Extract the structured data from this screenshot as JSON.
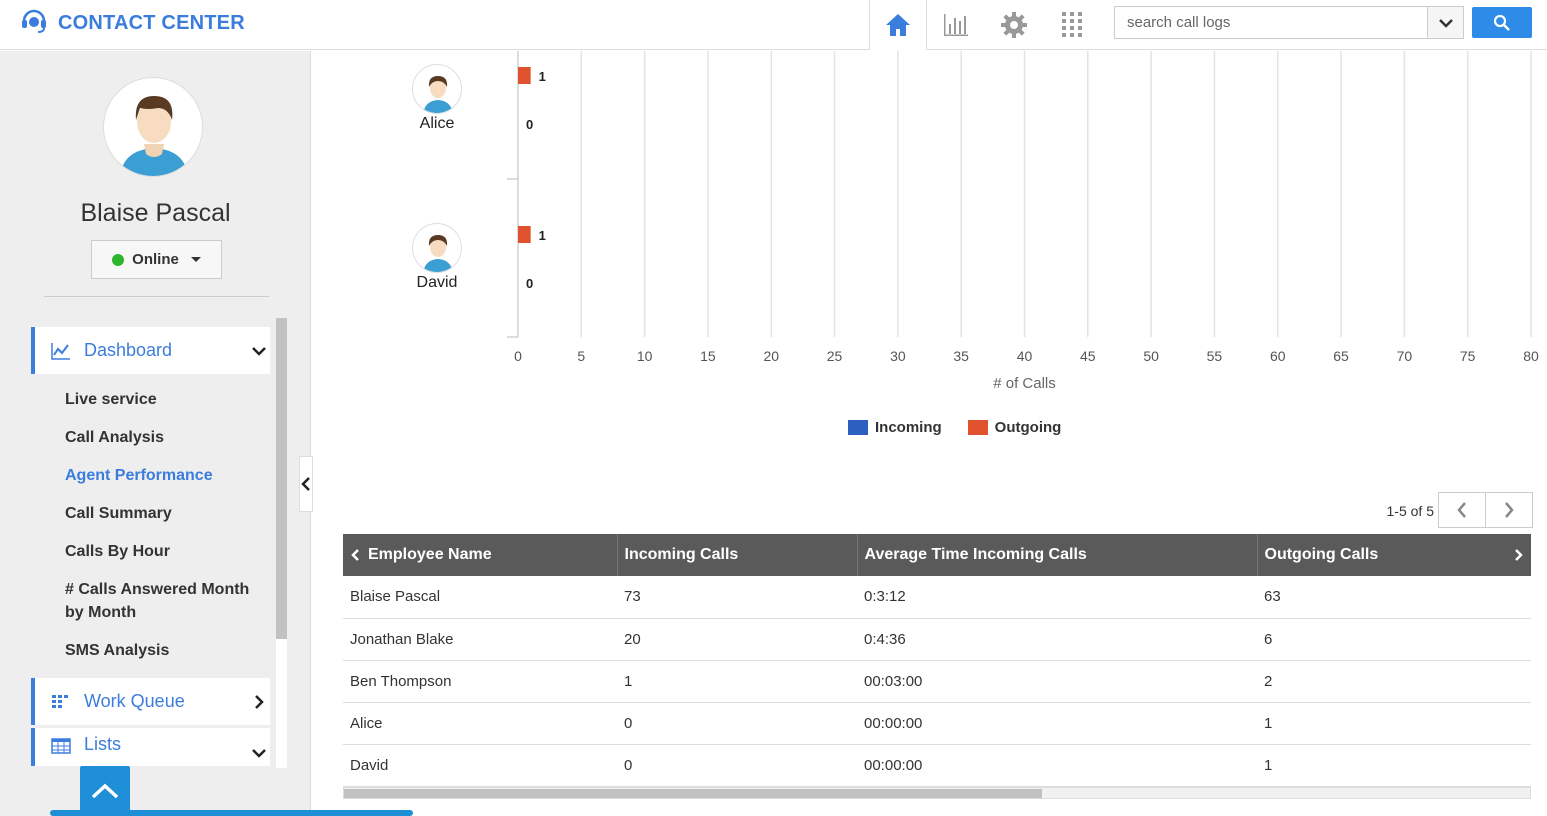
{
  "header": {
    "brand": "CONTACT CENTER",
    "search_placeholder": "search call logs",
    "nav": [
      "home-icon",
      "bar-chart-icon",
      "gear-icon",
      "apps-grid-icon"
    ]
  },
  "sidebar": {
    "user_name": "Blaise Pascal",
    "status": "Online",
    "sections": [
      {
        "label": "Dashboard",
        "icon": "line-chart-icon",
        "expanded": true
      },
      {
        "label": "Work Queue",
        "icon": "grid-list-icon",
        "expanded": false
      },
      {
        "label": "Lists",
        "icon": "table-icon",
        "expanded": true
      }
    ],
    "dashboard_items": [
      "Live service",
      "Call Analysis",
      "Agent Performance",
      "Call Summary",
      "Calls By Hour",
      "# Calls Answered Month by Month",
      "SMS Analysis"
    ],
    "active_item": "Agent Performance"
  },
  "chart_data": {
    "type": "bar",
    "orientation": "horizontal",
    "categories": [
      "Alice",
      "David"
    ],
    "series": [
      {
        "name": "Outgoing",
        "color": "#e0522e",
        "values": [
          1,
          1
        ]
      },
      {
        "name": "Incoming",
        "color": "#2d5fc0",
        "values": [
          0,
          0
        ]
      }
    ],
    "xlabel": "# of Calls",
    "xlim": [
      0,
      80
    ],
    "xticks": [
      "0",
      "5",
      "10",
      "15",
      "20",
      "25",
      "30",
      "35",
      "40",
      "45",
      "50",
      "55",
      "60",
      "65",
      "70",
      "75",
      "80"
    ],
    "grid": true,
    "legend": [
      "Incoming",
      "Outgoing"
    ],
    "legend_position": "bottom"
  },
  "table": {
    "pager_text": "1-5 of 5",
    "columns": [
      "Employee Name",
      "Incoming Calls",
      "Average Time Incoming Calls",
      "Outgoing Calls"
    ],
    "rows": [
      [
        "Blaise Pascal",
        "73",
        "0:3:12",
        "63"
      ],
      [
        "Jonathan Blake",
        "20",
        "0:4:36",
        "6"
      ],
      [
        "Ben Thompson",
        "1",
        "00:03:00",
        "2"
      ],
      [
        "Alice",
        "0",
        "00:00:00",
        "1"
      ],
      [
        "David",
        "0",
        "00:00:00",
        "1"
      ]
    ]
  }
}
